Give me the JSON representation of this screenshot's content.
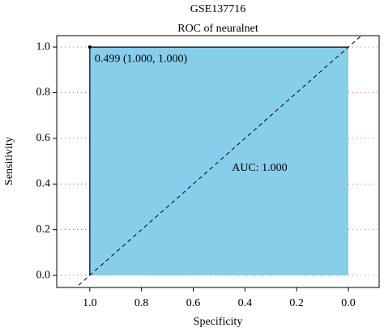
{
  "chart_data": {
    "type": "roc",
    "title": "GSE137716",
    "subtitle": "ROC of neuralnet",
    "xlabel": "Specificity",
    "ylabel": "Sensitivity",
    "x": [
      1,
      1,
      0
    ],
    "values": [
      0,
      1,
      1
    ],
    "color": "#87ceeb",
    "line_color": "#000000",
    "xlim": [
      1.128,
      -0.119
    ],
    "ylim": [
      -0.053,
      1.05
    ],
    "xticks": [
      {
        "value": 1,
        "label": "1.0"
      },
      0.8,
      0.6,
      0.4,
      0.2,
      {
        "value": 0,
        "label": "0.0"
      }
    ],
    "yticks": [
      {
        "value": 0,
        "label": "0.0"
      },
      0.2,
      0.4,
      0.6,
      0.8,
      {
        "value": 1,
        "label": "1.0"
      }
    ],
    "grid": true,
    "threshold": {
      "x": 1,
      "y": 1,
      "label": "0.499 (1.000, 1.000)"
    },
    "auc_label": "AUC: 1.000"
  }
}
